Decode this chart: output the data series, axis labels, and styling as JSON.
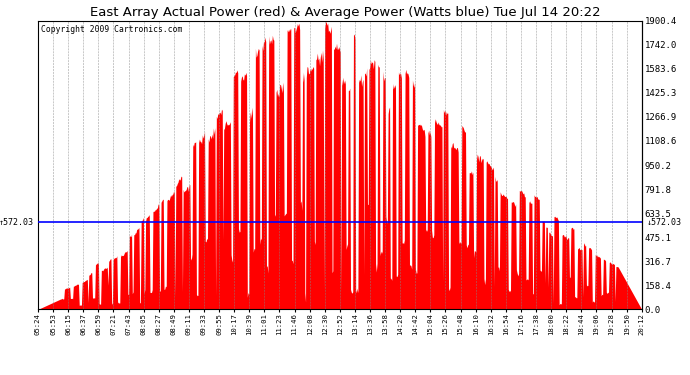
{
  "title": "East Array Actual Power (red) & Average Power (Watts blue) Tue Jul 14 20:22",
  "copyright": "Copyright 2009 Cartronics.com",
  "average_power": 572.03,
  "ymax": 1900.4,
  "ymin": 0.0,
  "yticks_right": [
    0.0,
    158.4,
    316.7,
    475.1,
    633.5,
    791.8,
    950.2,
    1108.6,
    1266.9,
    1425.3,
    1583.6,
    1742.0,
    1900.4
  ],
  "ytick_labels_right": [
    "0.0",
    "158.4",
    "316.7",
    "475.1",
    "633.5",
    "791.8",
    "950.2",
    "1108.6",
    "1266.9",
    "1425.3",
    "1583.6",
    "1742.0",
    "1900.4"
  ],
  "background_color": "#ffffff",
  "fill_color": "#ff0000",
  "line_color": "#0000ff",
  "grid_color": "#888888",
  "xtick_labels": [
    "05:24",
    "05:53",
    "06:15",
    "06:37",
    "06:59",
    "07:21",
    "07:43",
    "08:05",
    "08:27",
    "08:49",
    "09:11",
    "09:33",
    "09:55",
    "10:17",
    "10:39",
    "11:01",
    "11:23",
    "11:46",
    "12:08",
    "12:30",
    "12:52",
    "13:14",
    "13:36",
    "13:58",
    "14:20",
    "14:42",
    "15:04",
    "15:26",
    "15:48",
    "16:10",
    "16:32",
    "16:54",
    "17:16",
    "17:38",
    "18:00",
    "18:22",
    "18:44",
    "19:06",
    "19:28",
    "19:50",
    "20:12"
  ]
}
